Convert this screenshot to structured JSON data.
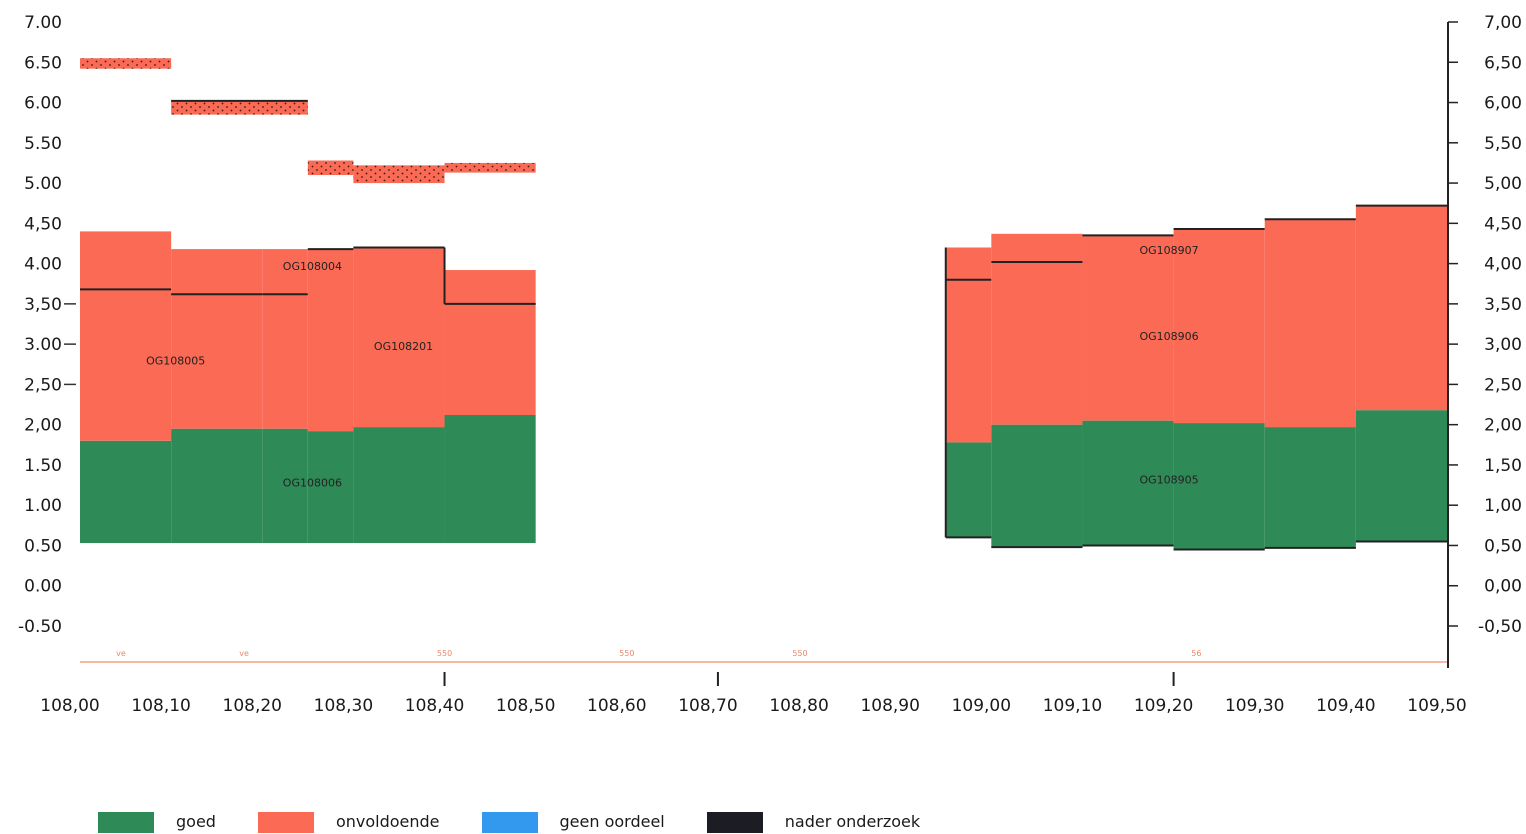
{
  "chart_data": {
    "type": "bar",
    "y_ticks_left": [
      "7.00",
      "6.50",
      "6.00",
      "5.50",
      "5.00",
      "4,50",
      "4.00",
      "3,50",
      "3.00",
      "2,50",
      "2,00",
      "1.50",
      "1.00",
      "0.50",
      "0.00",
      "-0.50"
    ],
    "y_ticks_right": [
      "7,00",
      "6,50",
      "6,00",
      "5,50",
      "5,00",
      "4,50",
      "4,00",
      "3,50",
      "3,00",
      "2,50",
      "2,00",
      "1,50",
      "1,00",
      "0,50",
      "0,00",
      "-0,50"
    ],
    "x_ticks": [
      "108,00",
      "108,10",
      "108,20",
      "108,30",
      "108,40",
      "108,50",
      "108,60",
      "108,70",
      "108,80",
      "108,90",
      "109,00",
      "109,10",
      "109,20",
      "109,30",
      "109,40",
      "109,50"
    ],
    "ylim": [
      -0.5,
      7.0
    ],
    "xlim": [
      108.0,
      109.5
    ],
    "colors": {
      "goed": "#2e8b57",
      "onvoldoende": "#fa6a55",
      "geen_oordeel": "#3399ee",
      "nader_onderzoek": "#1c1c24"
    },
    "segments": [
      {
        "x0": 108.0,
        "x1": 108.1,
        "bottom": 0.53,
        "goed_top": 1.8,
        "onv_top": 4.4,
        "mark": 3.68
      },
      {
        "x0": 108.1,
        "x1": 108.2,
        "bottom": 0.53,
        "goed_top": 1.95,
        "onv_top": 4.18,
        "mark": 3.62
      },
      {
        "x0": 108.2,
        "x1": 108.25,
        "bottom": 0.53,
        "goed_top": 1.95,
        "onv_top": 4.18,
        "mark": 3.62
      },
      {
        "x0": 108.25,
        "x1": 108.3,
        "bottom": 0.53,
        "goed_top": 1.92,
        "onv_top": 4.18,
        "mark": 4.18
      },
      {
        "x0": 108.3,
        "x1": 108.4,
        "bottom": 0.53,
        "goed_top": 1.97,
        "onv_top": 4.2,
        "mark": 4.2
      },
      {
        "x0": 108.4,
        "x1": 108.5,
        "bottom": 0.53,
        "goed_top": 2.12,
        "onv_top": 3.92,
        "mark": 3.5
      },
      {
        "x0": 108.95,
        "x1": 109.0,
        "bottom": 0.6,
        "goed_top": 1.78,
        "onv_top": 4.2,
        "mark": 3.8
      },
      {
        "x0": 109.0,
        "x1": 109.1,
        "bottom": 0.48,
        "goed_top": 2.0,
        "onv_top": 4.37,
        "mark": 4.02
      },
      {
        "x0": 109.1,
        "x1": 109.2,
        "bottom": 0.5,
        "goed_top": 2.05,
        "onv_top": 4.35,
        "mark": 4.35
      },
      {
        "x0": 109.2,
        "x1": 109.3,
        "bottom": 0.45,
        "goed_top": 2.02,
        "onv_top": 4.43,
        "mark": 4.43
      },
      {
        "x0": 109.3,
        "x1": 109.4,
        "bottom": 0.47,
        "goed_top": 1.97,
        "onv_top": 4.55,
        "mark": 4.55
      },
      {
        "x0": 109.4,
        "x1": 109.5,
        "bottom": 0.55,
        "goed_top": 2.18,
        "onv_top": 4.72,
        "mark": 4.72
      }
    ],
    "hatched": [
      {
        "x0": 108.0,
        "x1": 108.1,
        "y0": 6.42,
        "y1": 6.55
      },
      {
        "x0": 108.1,
        "x1": 108.25,
        "y0": 5.85,
        "y1": 6.02
      },
      {
        "x0": 108.25,
        "x1": 108.3,
        "y0": 5.1,
        "y1": 5.28
      },
      {
        "x0": 108.3,
        "x1": 108.4,
        "y0": 5.0,
        "y1": 5.22
      },
      {
        "x0": 108.4,
        "x1": 108.5,
        "y0": 5.13,
        "y1": 5.25
      }
    ],
    "segment_labels": [
      {
        "text": "OG108005",
        "x": 108.105,
        "y": 2.75
      },
      {
        "text": "OG108004",
        "x": 108.255,
        "y": 3.92
      },
      {
        "text": "OG108201",
        "x": 108.355,
        "y": 2.93
      },
      {
        "text": "OG108006",
        "x": 108.255,
        "y": 1.23
      },
      {
        "text": "OG108907",
        "x": 109.195,
        "y": 4.12
      },
      {
        "text": "OG108906",
        "x": 109.195,
        "y": 3.05
      },
      {
        "text": "OG108905",
        "x": 109.195,
        "y": 1.27
      }
    ],
    "bottom_labels": [
      {
        "text": "ve",
        "x": 108.045
      },
      {
        "text": "ve",
        "x": 108.18
      },
      {
        "text": "550",
        "x": 108.4
      },
      {
        "text": "550",
        "x": 108.6
      },
      {
        "text": "550",
        "x": 108.79
      },
      {
        "text": "56",
        "x": 109.225
      }
    ]
  },
  "legend": [
    {
      "label": "goed",
      "color": "#2e8b57"
    },
    {
      "label": "onvoldoende",
      "color": "#fa6a55"
    },
    {
      "label": "geen oordeel",
      "color": "#3399ee"
    },
    {
      "label": "nader onderzoek",
      "color": "#1c1c24"
    }
  ]
}
